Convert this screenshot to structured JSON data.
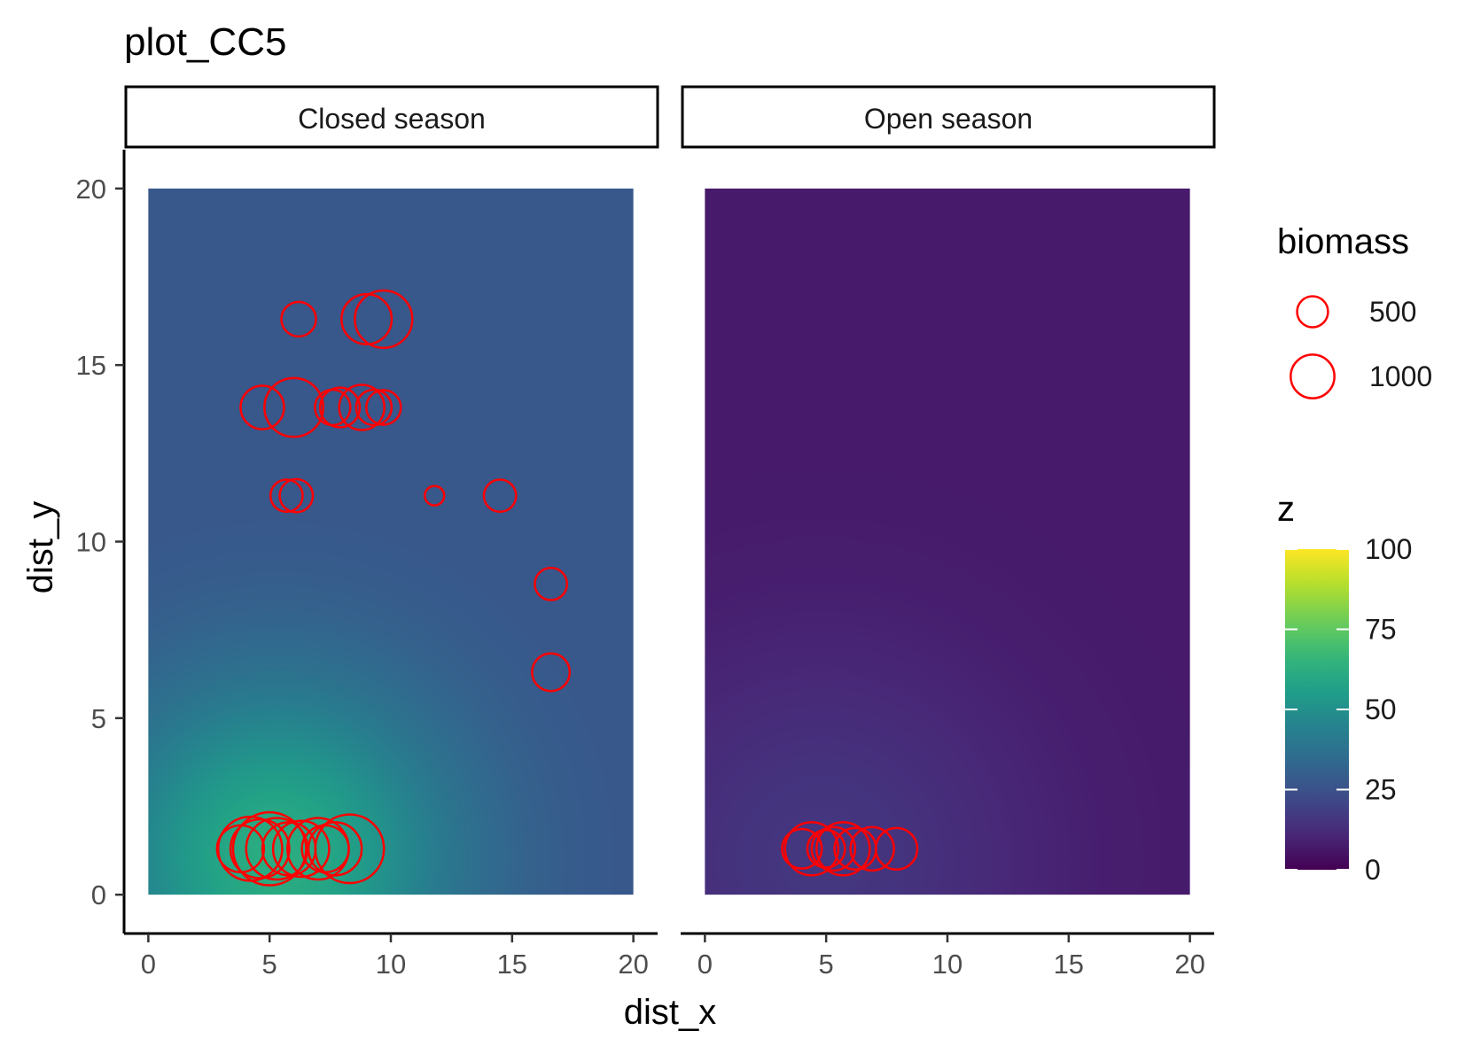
{
  "chart_data": {
    "type": "heatmap",
    "title": "plot_CC5",
    "xlabel": "dist_x",
    "ylabel": "dist_y",
    "xlim": [
      -1,
      21
    ],
    "ylim": [
      -1.1,
      21.1
    ],
    "x_ticks": [
      0,
      5,
      10,
      15,
      20
    ],
    "y_ticks": [
      0,
      5,
      10,
      15,
      20
    ],
    "x_tick_labels": [
      "0",
      "5",
      "10",
      "15",
      "20"
    ],
    "y_tick_labels": [
      "0",
      "5",
      "10",
      "15",
      "20"
    ],
    "grid": false,
    "panels": [
      {
        "label": "Closed season",
        "raster_extent": {
          "x": [
            0,
            20
          ],
          "y": [
            0,
            20
          ]
        },
        "field": {
          "peak_x": 5.3,
          "peak_y": 1.0,
          "peak": 62,
          "far": 27,
          "falloff": 5
        },
        "points": [
          {
            "x": 6.2,
            "y": 16.3,
            "biomass": 380
          },
          {
            "x": 9.0,
            "y": 16.3,
            "biomass": 800
          },
          {
            "x": 9.7,
            "y": 16.3,
            "biomass": 1050
          },
          {
            "x": 4.7,
            "y": 13.8,
            "biomass": 600
          },
          {
            "x": 6.0,
            "y": 13.8,
            "biomass": 1100
          },
          {
            "x": 7.6,
            "y": 13.8,
            "biomass": 400
          },
          {
            "x": 7.9,
            "y": 13.8,
            "biomass": 500
          },
          {
            "x": 8.8,
            "y": 13.8,
            "biomass": 650
          },
          {
            "x": 9.3,
            "y": 13.8,
            "biomass": 400
          },
          {
            "x": 9.7,
            "y": 13.8,
            "biomass": 380
          },
          {
            "x": 5.7,
            "y": 11.3,
            "biomass": 330
          },
          {
            "x": 6.1,
            "y": 11.3,
            "biomass": 350
          },
          {
            "x": 11.8,
            "y": 11.3,
            "biomass": 120
          },
          {
            "x": 14.5,
            "y": 11.3,
            "biomass": 330
          },
          {
            "x": 16.6,
            "y": 8.8,
            "biomass": 330
          },
          {
            "x": 16.6,
            "y": 6.3,
            "biomass": 450
          },
          {
            "x": 3.8,
            "y": 1.3,
            "biomass": 700
          },
          {
            "x": 4.2,
            "y": 1.3,
            "biomass": 1300
          },
          {
            "x": 4.6,
            "y": 1.3,
            "biomass": 1100
          },
          {
            "x": 5.0,
            "y": 1.3,
            "biomass": 1700
          },
          {
            "x": 5.3,
            "y": 1.3,
            "biomass": 1200
          },
          {
            "x": 5.8,
            "y": 1.3,
            "biomass": 900
          },
          {
            "x": 6.3,
            "y": 1.3,
            "biomass": 1000
          },
          {
            "x": 7.0,
            "y": 1.3,
            "biomass": 1200
          },
          {
            "x": 7.3,
            "y": 1.3,
            "biomass": 700
          },
          {
            "x": 7.7,
            "y": 1.3,
            "biomass": 900
          },
          {
            "x": 8.3,
            "y": 1.3,
            "biomass": 1500
          }
        ]
      },
      {
        "label": "Open season",
        "raster_extent": {
          "x": [
            0,
            20
          ],
          "y": [
            0,
            20
          ]
        },
        "field": {
          "peak_x": 4.8,
          "peak_y": 1.0,
          "peak": 16,
          "far": 7,
          "falloff": 6
        },
        "points": [
          {
            "x": 4.0,
            "y": 1.3,
            "biomass": 500
          },
          {
            "x": 4.4,
            "y": 1.3,
            "biomass": 900
          },
          {
            "x": 5.0,
            "y": 1.3,
            "biomass": 450
          },
          {
            "x": 5.3,
            "y": 1.3,
            "biomass": 600
          },
          {
            "x": 5.7,
            "y": 1.3,
            "biomass": 900
          },
          {
            "x": 6.2,
            "y": 1.3,
            "biomass": 550
          },
          {
            "x": 6.9,
            "y": 1.3,
            "biomass": 600
          },
          {
            "x": 7.9,
            "y": 1.3,
            "biomass": 550
          }
        ]
      }
    ],
    "point_color": "#ff0000",
    "size_legend": {
      "title": "biomass",
      "entries": [
        {
          "label": "500",
          "value": 500
        },
        {
          "label": "1000",
          "value": 1000
        }
      ]
    },
    "color_legend": {
      "title": "z",
      "palette": "viridis",
      "limits": [
        0,
        100
      ],
      "breaks": [
        0,
        25,
        50,
        75,
        100
      ],
      "break_labels": [
        "0",
        "25",
        "50",
        "75",
        "100"
      ]
    }
  }
}
